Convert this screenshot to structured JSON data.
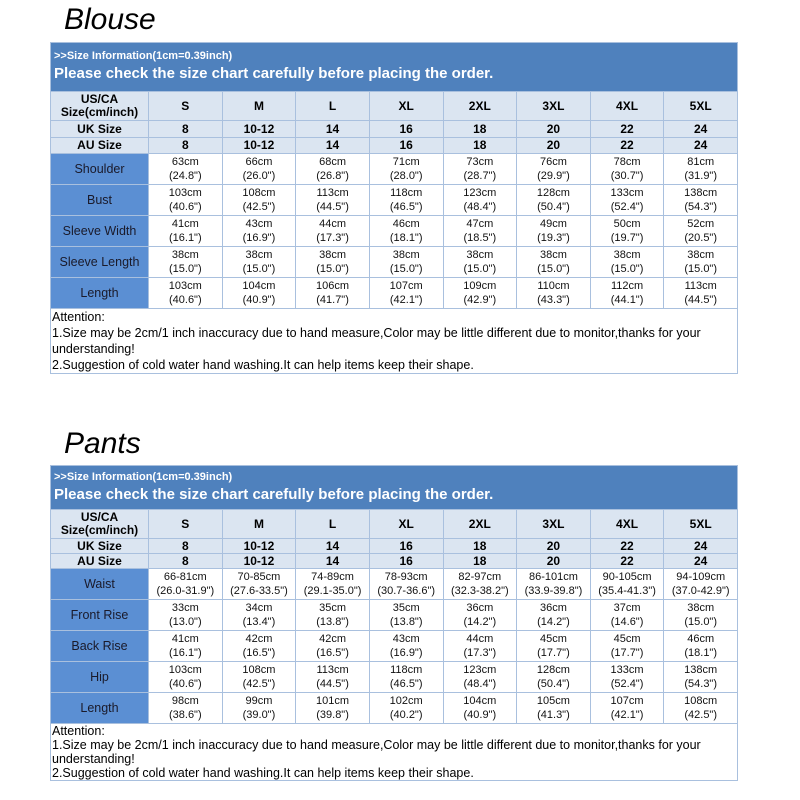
{
  "sections": [
    {
      "title": "Blouse",
      "info": ">>Size Information(1cm=0.39inch)",
      "notice": "Please check the size chart carefully before placing the order.",
      "header": {
        "label": [
          "US/CA",
          "Size(cm/inch)"
        ],
        "sizes": [
          "S",
          "M",
          "L",
          "XL",
          "2XL",
          "3XL",
          "4XL",
          "5XL"
        ]
      },
      "uk": {
        "label": "UK Size",
        "values": [
          "8",
          "10-12",
          "14",
          "16",
          "18",
          "20",
          "22",
          "24"
        ]
      },
      "au": {
        "label": "AU Size",
        "values": [
          "8",
          "10-12",
          "14",
          "16",
          "18",
          "20",
          "22",
          "24"
        ]
      },
      "rows": [
        {
          "label": "Shoulder",
          "cells": [
            [
              "63cm",
              "(24.8\")"
            ],
            [
              "66cm",
              "(26.0\")"
            ],
            [
              "68cm",
              "(26.8\")"
            ],
            [
              "71cm",
              "(28.0\")"
            ],
            [
              "73cm",
              "(28.7\")"
            ],
            [
              "76cm",
              "(29.9\")"
            ],
            [
              "78cm",
              "(30.7\")"
            ],
            [
              "81cm",
              "(31.9\")"
            ]
          ]
        },
        {
          "label": "Bust",
          "cells": [
            [
              "103cm",
              "(40.6\")"
            ],
            [
              "108cm",
              "(42.5\")"
            ],
            [
              "113cm",
              "(44.5\")"
            ],
            [
              "118cm",
              "(46.5\")"
            ],
            [
              "123cm",
              "(48.4\")"
            ],
            [
              "128cm",
              "(50.4\")"
            ],
            [
              "133cm",
              "(52.4\")"
            ],
            [
              "138cm",
              "(54.3\")"
            ]
          ]
        },
        {
          "label": "Sleeve Width",
          "cells": [
            [
              "41cm",
              "(16.1\")"
            ],
            [
              "43cm",
              "(16.9\")"
            ],
            [
              "44cm",
              "(17.3\")"
            ],
            [
              "46cm",
              "(18.1\")"
            ],
            [
              "47cm",
              "(18.5\")"
            ],
            [
              "49cm",
              "(19.3\")"
            ],
            [
              "50cm",
              "(19.7\")"
            ],
            [
              "52cm",
              "(20.5\")"
            ]
          ]
        },
        {
          "label": "Sleeve Length",
          "cells": [
            [
              "38cm",
              "(15.0\")"
            ],
            [
              "38cm",
              "(15.0\")"
            ],
            [
              "38cm",
              "(15.0\")"
            ],
            [
              "38cm",
              "(15.0\")"
            ],
            [
              "38cm",
              "(15.0\")"
            ],
            [
              "38cm",
              "(15.0\")"
            ],
            [
              "38cm",
              "(15.0\")"
            ],
            [
              "38cm",
              "(15.0\")"
            ]
          ]
        },
        {
          "label": "Length",
          "cells": [
            [
              "103cm",
              "(40.6\")"
            ],
            [
              "104cm",
              "(40.9\")"
            ],
            [
              "106cm",
              "(41.7\")"
            ],
            [
              "107cm",
              "(42.1\")"
            ],
            [
              "109cm",
              "(42.9\")"
            ],
            [
              "110cm",
              "(43.3\")"
            ],
            [
              "112cm",
              "(44.1\")"
            ],
            [
              "113cm",
              "(44.5\")"
            ]
          ]
        }
      ],
      "attention": [
        "Attention:",
        "1.Size may be 2cm/1 inch inaccuracy due to hand measure,Color may be little different due to monitor,thanks for your understanding!",
        "2.Suggestion of cold water hand washing.It can help items keep their shape."
      ]
    },
    {
      "title": "Pants",
      "info": ">>Size Information(1cm=0.39inch)",
      "notice": "Please check the size chart carefully before placing the order.",
      "header": {
        "label": [
          "US/CA",
          "Size(cm/inch)"
        ],
        "sizes": [
          "S",
          "M",
          "L",
          "XL",
          "2XL",
          "3XL",
          "4XL",
          "5XL"
        ]
      },
      "uk": {
        "label": "UK Size",
        "values": [
          "8",
          "10-12",
          "14",
          "16",
          "18",
          "20",
          "22",
          "24"
        ]
      },
      "au": {
        "label": "AU Size",
        "values": [
          "8",
          "10-12",
          "14",
          "16",
          "18",
          "20",
          "22",
          "24"
        ]
      },
      "rows": [
        {
          "label": "Waist",
          "cells": [
            [
              "66-81cm",
              "(26.0-31.9\")"
            ],
            [
              "70-85cm",
              "(27.6-33.5\")"
            ],
            [
              "74-89cm",
              "(29.1-35.0\")"
            ],
            [
              "78-93cm",
              "(30.7-36.6\")"
            ],
            [
              "82-97cm",
              "(32.3-38.2\")"
            ],
            [
              "86-101cm",
              "(33.9-39.8\")"
            ],
            [
              "90-105cm",
              "(35.4-41.3\")"
            ],
            [
              "94-109cm",
              "(37.0-42.9\")"
            ]
          ]
        },
        {
          "label": "Front Rise",
          "cells": [
            [
              "33cm",
              "(13.0\")"
            ],
            [
              "34cm",
              "(13.4\")"
            ],
            [
              "35cm",
              "(13.8\")"
            ],
            [
              "35cm",
              "(13.8\")"
            ],
            [
              "36cm",
              "(14.2\")"
            ],
            [
              "36cm",
              "(14.2\")"
            ],
            [
              "37cm",
              "(14.6\")"
            ],
            [
              "38cm",
              "(15.0\")"
            ]
          ]
        },
        {
          "label": "Back Rise",
          "cells": [
            [
              "41cm",
              "(16.1\")"
            ],
            [
              "42cm",
              "(16.5\")"
            ],
            [
              "42cm",
              "(16.5\")"
            ],
            [
              "43cm",
              "(16.9\")"
            ],
            [
              "44cm",
              "(17.3\")"
            ],
            [
              "45cm",
              "(17.7\")"
            ],
            [
              "45cm",
              "(17.7\")"
            ],
            [
              "46cm",
              "(18.1\")"
            ]
          ]
        },
        {
          "label": "Hip",
          "cells": [
            [
              "103cm",
              "(40.6\")"
            ],
            [
              "108cm",
              "(42.5\")"
            ],
            [
              "113cm",
              "(44.5\")"
            ],
            [
              "118cm",
              "(46.5\")"
            ],
            [
              "123cm",
              "(48.4\")"
            ],
            [
              "128cm",
              "(50.4\")"
            ],
            [
              "133cm",
              "(52.4\")"
            ],
            [
              "138cm",
              "(54.3\")"
            ]
          ]
        },
        {
          "label": "Length",
          "cells": [
            [
              "98cm",
              "(38.6\")"
            ],
            [
              "99cm",
              "(39.0\")"
            ],
            [
              "101cm",
              "(39.8\")"
            ],
            [
              "102cm",
              "(40.2\")"
            ],
            [
              "104cm",
              "(40.9\")"
            ],
            [
              "105cm",
              "(41.3\")"
            ],
            [
              "107cm",
              "(42.1\")"
            ],
            [
              "108cm",
              "(42.5\")"
            ]
          ]
        }
      ],
      "attention": [
        "Attention:",
        "1.Size may be 2cm/1 inch inaccuracy due to hand measure,Color may be little different due to monitor,thanks for your understanding!",
        "2.Suggestion of cold water hand washing.It can help items keep their shape."
      ]
    }
  ]
}
